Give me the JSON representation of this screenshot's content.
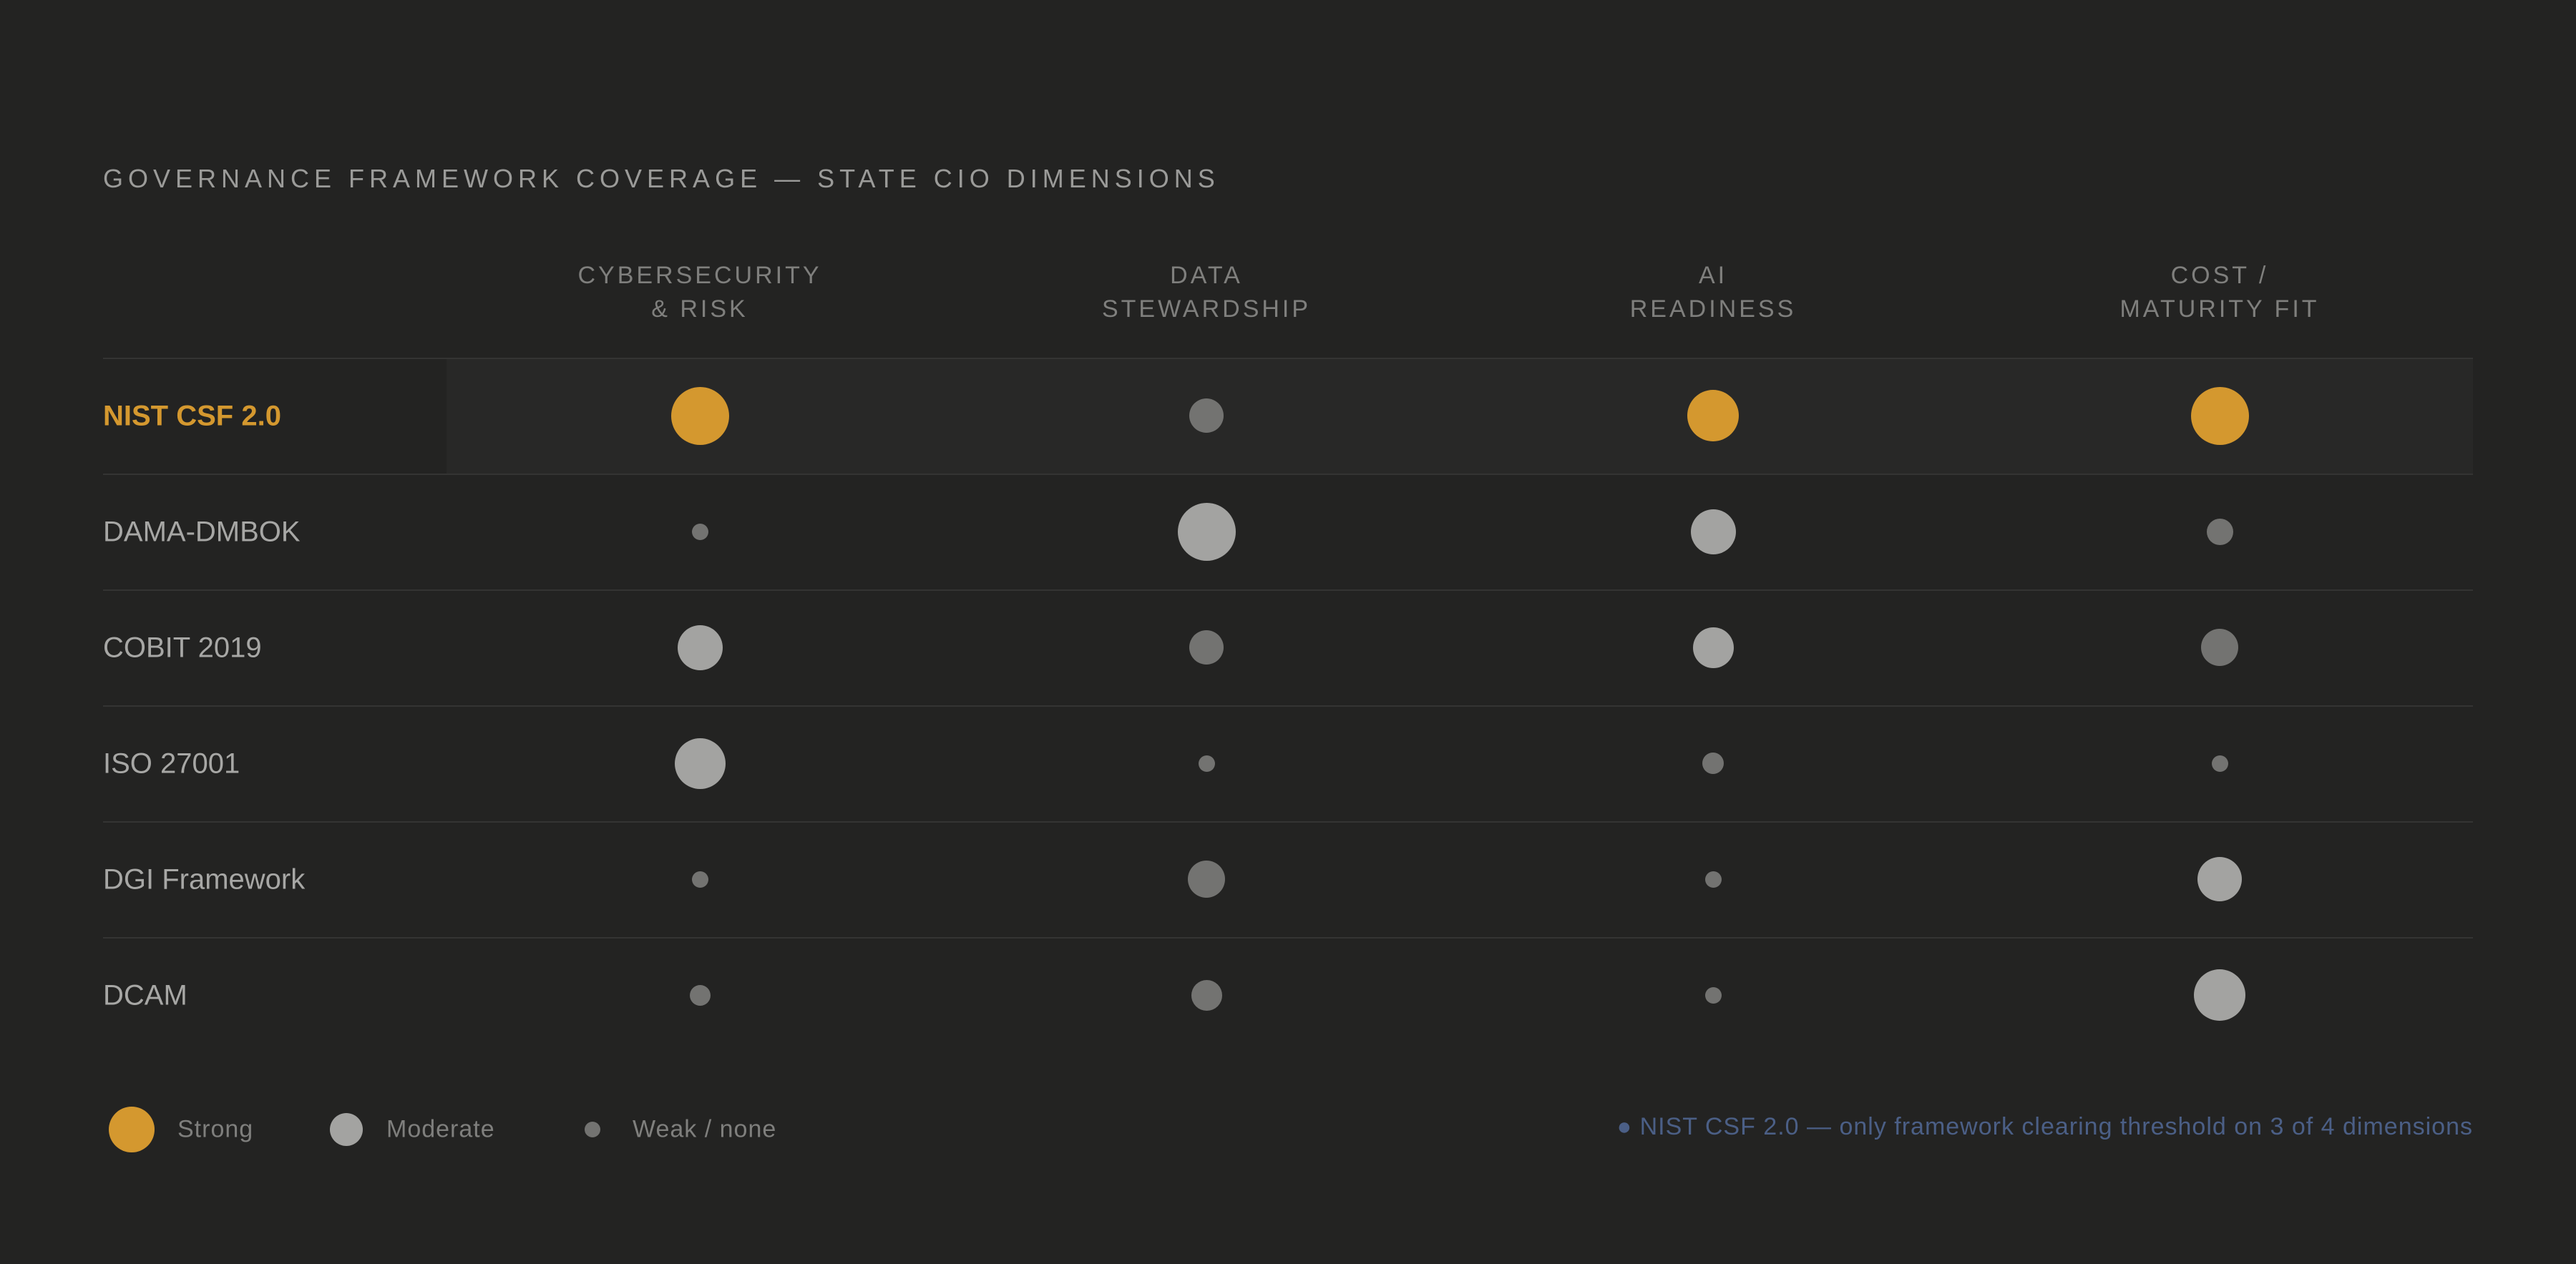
{
  "chart_data": {
    "type": "heatmap",
    "title": "GOVERNANCE FRAMEWORK COVERAGE — STATE CIO DIMENSIONS",
    "columns": [
      [
        "CYBERSECURITY",
        "& RISK"
      ],
      [
        "DATA",
        "STEWARDSHIP"
      ],
      [
        "AI",
        "READINESS"
      ],
      [
        "COST /",
        "MATURITY FIT"
      ]
    ],
    "rows": [
      "NIST CSF 2.0",
      "DAMA-DMBOK",
      "COBIT 2019",
      "ISO 27001",
      "DGI Framework",
      "DCAM"
    ],
    "highlight_row": "NIST CSF 2.0",
    "values": [
      [
        0.88,
        0.52,
        0.78,
        0.88
      ],
      [
        0.25,
        0.88,
        0.68,
        0.4
      ],
      [
        0.68,
        0.52,
        0.62,
        0.57
      ],
      [
        0.77,
        0.25,
        0.33,
        0.25
      ],
      [
        0.25,
        0.57,
        0.25,
        0.67
      ],
      [
        0.32,
        0.47,
        0.25,
        0.78
      ]
    ],
    "legend": [
      {
        "label": "Strong",
        "level": "strong"
      },
      {
        "label": "Moderate",
        "level": "moderate"
      },
      {
        "label": "Weak / none",
        "level": "weak"
      }
    ],
    "note": "● NIST CSF 2.0 — only framework clearing threshold on 3 of 4 dimensions"
  },
  "colors": {
    "strong": "#d4982f",
    "moderate": "#a3a3a1",
    "weak": "#737371"
  }
}
